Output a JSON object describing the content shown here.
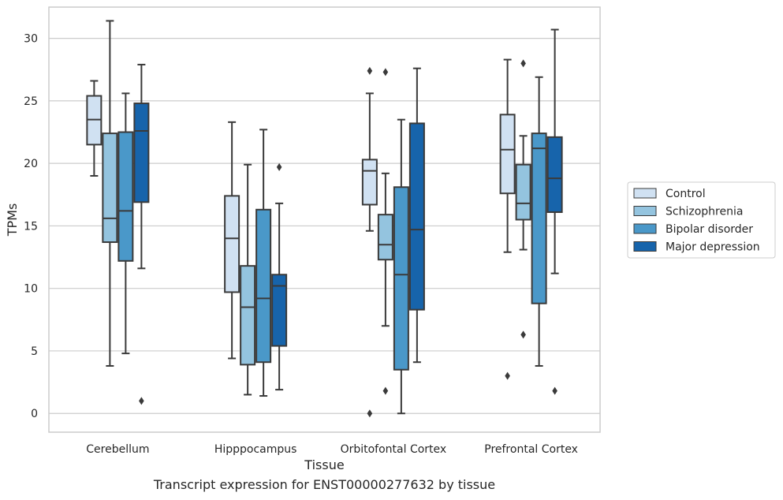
{
  "caption": "Transcript expression for ENST00000277632 by tissue",
  "chart_data": {
    "type": "box",
    "xlabel": "Tissue",
    "ylabel": "TPMs",
    "ylim": [
      -1.5,
      32.5
    ],
    "yticks": [
      0,
      5,
      10,
      15,
      20,
      25,
      30
    ],
    "grid": "horizontal",
    "legend_position": "right",
    "categories": [
      "Cerebellum",
      "Hipppocampus",
      "Orbitofontal Cortex",
      "Prefrontal Cortex"
    ],
    "series": [
      {
        "name": "Control",
        "color": "#d0e1f2",
        "boxes": [
          {
            "whislo": 19.0,
            "q1": 21.5,
            "med": 23.5,
            "q3": 25.4,
            "whishi": 26.6,
            "fliers": []
          },
          {
            "whislo": 4.4,
            "q1": 9.7,
            "med": 14.0,
            "q3": 17.4,
            "whishi": 23.3,
            "fliers": []
          },
          {
            "whislo": 14.6,
            "q1": 16.7,
            "med": 19.4,
            "q3": 20.3,
            "whishi": 25.6,
            "fliers": [
              27.4,
              0.0
            ]
          },
          {
            "whislo": 12.9,
            "q1": 17.6,
            "med": 21.1,
            "q3": 23.9,
            "whishi": 28.3,
            "fliers": [
              3.0
            ]
          }
        ]
      },
      {
        "name": "Schizophrenia",
        "color": "#94c4df",
        "boxes": [
          {
            "whislo": 3.8,
            "q1": 13.7,
            "med": 15.6,
            "q3": 22.4,
            "whishi": 31.4,
            "fliers": []
          },
          {
            "whislo": 1.5,
            "q1": 3.9,
            "med": 8.5,
            "q3": 11.8,
            "whishi": 19.9,
            "fliers": []
          },
          {
            "whislo": 7.0,
            "q1": 12.3,
            "med": 13.5,
            "q3": 15.9,
            "whishi": 19.2,
            "fliers": [
              27.3,
              1.8
            ]
          },
          {
            "whislo": 13.1,
            "q1": 15.5,
            "med": 16.8,
            "q3": 19.9,
            "whishi": 22.2,
            "fliers": [
              28.0,
              6.3
            ]
          }
        ]
      },
      {
        "name": "Bipolar disorder",
        "color": "#4a98c9",
        "boxes": [
          {
            "whislo": 4.8,
            "q1": 12.2,
            "med": 16.2,
            "q3": 22.5,
            "whishi": 25.6,
            "fliers": []
          },
          {
            "whislo": 1.4,
            "q1": 4.1,
            "med": 9.2,
            "q3": 16.3,
            "whishi": 22.7,
            "fliers": []
          },
          {
            "whislo": 0.0,
            "q1": 3.5,
            "med": 11.1,
            "q3": 18.1,
            "whishi": 23.5,
            "fliers": []
          },
          {
            "whislo": 3.8,
            "q1": 8.8,
            "med": 21.2,
            "q3": 22.4,
            "whishi": 26.9,
            "fliers": []
          }
        ]
      },
      {
        "name": "Major depression",
        "color": "#1764ab",
        "boxes": [
          {
            "whislo": 11.6,
            "q1": 16.9,
            "med": 22.6,
            "q3": 24.8,
            "whishi": 27.9,
            "fliers": [
              1.0
            ]
          },
          {
            "whislo": 1.9,
            "q1": 5.4,
            "med": 10.2,
            "q3": 11.1,
            "whishi": 16.8,
            "fliers": [
              19.7
            ]
          },
          {
            "whislo": 4.1,
            "q1": 8.3,
            "med": 14.7,
            "q3": 23.2,
            "whishi": 27.6,
            "fliers": []
          },
          {
            "whislo": 11.2,
            "q1": 16.1,
            "med": 18.8,
            "q3": 22.1,
            "whishi": 30.7,
            "fliers": [
              1.8
            ]
          }
        ]
      }
    ]
  }
}
